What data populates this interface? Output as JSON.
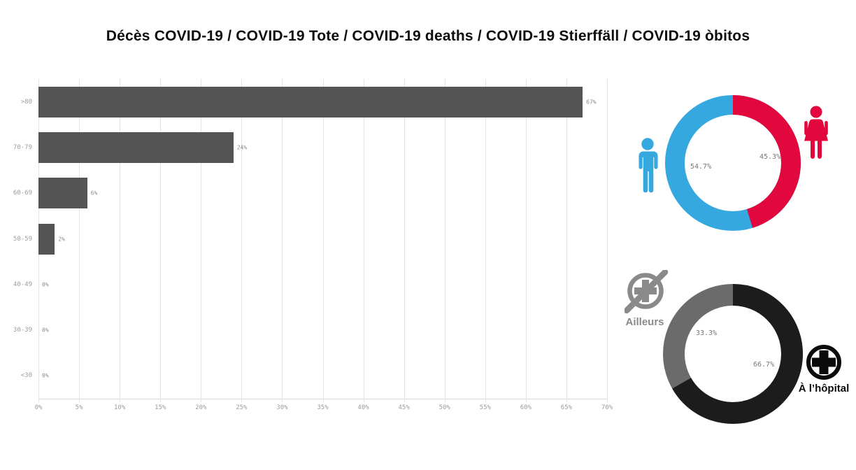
{
  "title": "Décès COVID-19 / COVID-19 Tote / COVID-19 deaths / COVID-19 Stierffäll / COVID-19 òbitos",
  "colors": {
    "bar": "#545454",
    "grid": "#e3e3e3",
    "axis_text": "#9c9c9c",
    "value_text": "#8b8b8b",
    "donut_label": "#787878",
    "elsewhere_label": "#8a8a8a"
  },
  "chart_data": [
    {
      "type": "bar",
      "name": "deaths-by-age",
      "orientation": "horizontal",
      "categories": [
        ">80",
        "70-79",
        "60-69",
        "50-59",
        "40-49",
        "30-39",
        "<30"
      ],
      "values": [
        67,
        24,
        6,
        2,
        0,
        0,
        0
      ],
      "labels": [
        "67%",
        "24%",
        "6%",
        "2%",
        "0%",
        "0%",
        "0%"
      ],
      "xlim": [
        0,
        70
      ],
      "xticks": [
        0,
        5,
        10,
        15,
        20,
        25,
        30,
        35,
        40,
        45,
        50,
        55,
        60,
        65,
        70
      ],
      "xtick_labels": [
        "0%",
        "5%",
        "10%",
        "15%",
        "20%",
        "25%",
        "30%",
        "35%",
        "40%",
        "45%",
        "50%",
        "55%",
        "60%",
        "65%",
        "70%"
      ],
      "grid": true,
      "bar_color": "#545454"
    },
    {
      "type": "pie",
      "subtype": "donut",
      "name": "deaths-by-sex",
      "slices": [
        {
          "icon": "male-icon",
          "value": 54.7,
          "display": "54.7%",
          "color": "#35a8e0"
        },
        {
          "icon": "female-icon",
          "value": 45.3,
          "display": "45.3%",
          "color": "#e2073c"
        }
      ]
    },
    {
      "type": "pie",
      "subtype": "donut",
      "name": "deaths-by-place",
      "slices": [
        {
          "label": "Ailleurs",
          "icon": "crossed-hospital-cross-icon",
          "value": 33.3,
          "display": "33.3%",
          "color": "#6b6b6b"
        },
        {
          "label": "À l’hôpital",
          "icon": "hospital-cross-icon",
          "value": 66.7,
          "display": "66.7%",
          "color": "#1c1c1c"
        }
      ]
    }
  ]
}
